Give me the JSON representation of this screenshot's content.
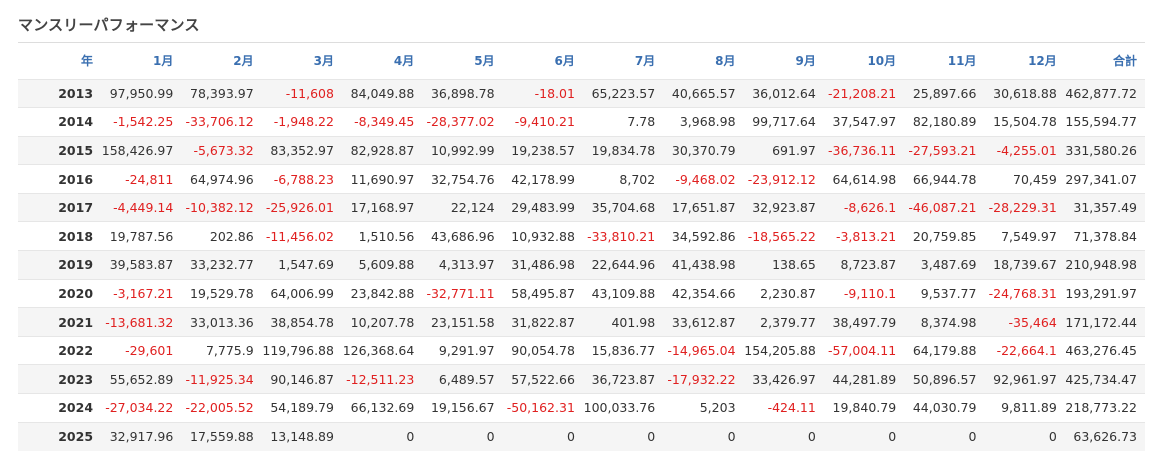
{
  "title": "マンスリーパフォーマンス",
  "headers": [
    "年",
    "1月",
    "2月",
    "3月",
    "4月",
    "5月",
    "6月",
    "7月",
    "8月",
    "9月",
    "10月",
    "11月",
    "12月",
    "合計"
  ],
  "rows": [
    {
      "year": "2013",
      "values": [
        "97,950.99",
        "78,393.97",
        "-11,608",
        "84,049.88",
        "36,898.78",
        "-18.01",
        "65,223.57",
        "40,665.57",
        "36,012.64",
        "-21,208.21",
        "25,897.66",
        "30,618.88",
        "462,877.72"
      ]
    },
    {
      "year": "2014",
      "values": [
        "-1,542.25",
        "-33,706.12",
        "-1,948.22",
        "-8,349.45",
        "-28,377.02",
        "-9,410.21",
        "7.78",
        "3,968.98",
        "99,717.64",
        "37,547.97",
        "82,180.89",
        "15,504.78",
        "155,594.77"
      ]
    },
    {
      "year": "2015",
      "values": [
        "158,426.97",
        "-5,673.32",
        "83,352.97",
        "82,928.87",
        "10,992.99",
        "19,238.57",
        "19,834.78",
        "30,370.79",
        "691.97",
        "-36,736.11",
        "-27,593.21",
        "-4,255.01",
        "331,580.26"
      ]
    },
    {
      "year": "2016",
      "values": [
        "-24,811",
        "64,974.96",
        "-6,788.23",
        "11,690.97",
        "32,754.76",
        "42,178.99",
        "8,702",
        "-9,468.02",
        "-23,912.12",
        "64,614.98",
        "66,944.78",
        "70,459",
        "297,341.07"
      ]
    },
    {
      "year": "2017",
      "values": [
        "-4,449.14",
        "-10,382.12",
        "-25,926.01",
        "17,168.97",
        "22,124",
        "29,483.99",
        "35,704.68",
        "17,651.87",
        "32,923.87",
        "-8,626.1",
        "-46,087.21",
        "-28,229.31",
        "31,357.49"
      ]
    },
    {
      "year": "2018",
      "values": [
        "19,787.56",
        "202.86",
        "-11,456.02",
        "1,510.56",
        "43,686.96",
        "10,932.88",
        "-33,810.21",
        "34,592.86",
        "-18,565.22",
        "-3,813.21",
        "20,759.85",
        "7,549.97",
        "71,378.84"
      ]
    },
    {
      "year": "2019",
      "values": [
        "39,583.87",
        "33,232.77",
        "1,547.69",
        "5,609.88",
        "4,313.97",
        "31,486.98",
        "22,644.96",
        "41,438.98",
        "138.65",
        "8,723.87",
        "3,487.69",
        "18,739.67",
        "210,948.98"
      ]
    },
    {
      "year": "2020",
      "values": [
        "-3,167.21",
        "19,529.78",
        "64,006.99",
        "23,842.88",
        "-32,771.11",
        "58,495.87",
        "43,109.88",
        "42,354.66",
        "2,230.87",
        "-9,110.1",
        "9,537.77",
        "-24,768.31",
        "193,291.97"
      ]
    },
    {
      "year": "2021",
      "values": [
        "-13,681.32",
        "33,013.36",
        "38,854.78",
        "10,207.78",
        "23,151.58",
        "31,822.87",
        "401.98",
        "33,612.87",
        "2,379.77",
        "38,497.79",
        "8,374.98",
        "-35,464",
        "171,172.44"
      ]
    },
    {
      "year": "2022",
      "values": [
        "-29,601",
        "7,775.9",
        "119,796.88",
        "126,368.64",
        "9,291.97",
        "90,054.78",
        "15,836.77",
        "-14,965.04",
        "154,205.88",
        "-57,004.11",
        "64,179.88",
        "-22,664.1",
        "463,276.45"
      ]
    },
    {
      "year": "2023",
      "values": [
        "55,652.89",
        "-11,925.34",
        "90,146.87",
        "-12,511.23",
        "6,489.57",
        "57,522.66",
        "36,723.87",
        "-17,932.22",
        "33,426.97",
        "44,281.89",
        "50,896.57",
        "92,961.97",
        "425,734.47"
      ]
    },
    {
      "year": "2024",
      "values": [
        "-27,034.22",
        "-22,005.52",
        "54,189.79",
        "66,132.69",
        "19,156.67",
        "-50,162.31",
        "100,033.76",
        "5,203",
        "-424.11",
        "19,840.79",
        "44,030.79",
        "9,811.89",
        "218,773.22"
      ]
    },
    {
      "year": "2025",
      "values": [
        "32,917.96",
        "17,559.88",
        "13,148.89",
        "0",
        "0",
        "0",
        "0",
        "0",
        "0",
        "0",
        "0",
        "0",
        "63,626.73"
      ]
    }
  ],
  "colors": {
    "positive": "#333333",
    "negative": "#e02020",
    "header": "#3a6fb0",
    "stripe": "#f5f5f5"
  }
}
